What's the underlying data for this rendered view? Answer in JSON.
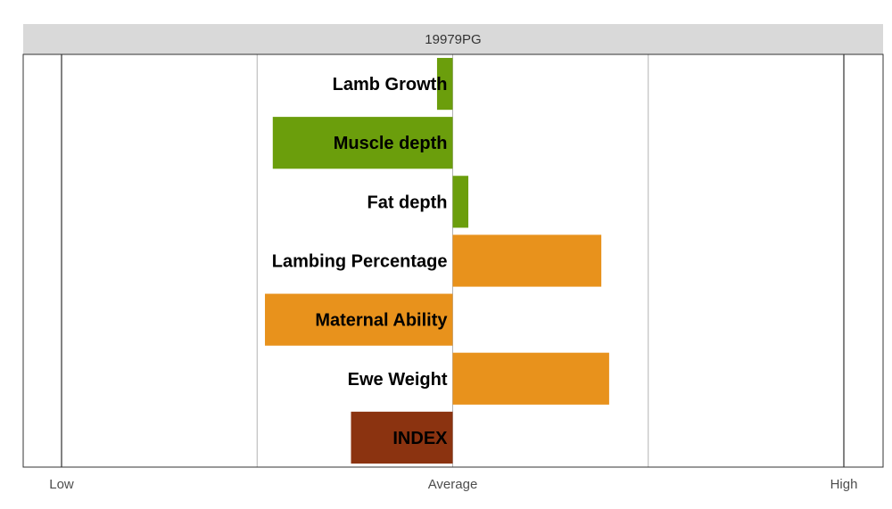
{
  "chart_data": {
    "type": "bar",
    "orientation": "horizontal",
    "title": "19979PG",
    "categories": [
      "Lamb Growth",
      "Muscle depth",
      "Fat depth",
      "Lambing Percentage",
      "Maternal Ability",
      "Ewe Weight",
      "INDEX"
    ],
    "values": [
      -0.08,
      -0.92,
      0.08,
      0.76,
      -0.96,
      0.8,
      -0.52
    ],
    "bar_colors": [
      "#6b9e0c",
      "#6b9e0c",
      "#6b9e0c",
      "#e8921c",
      "#e8921c",
      "#e8921c",
      "#8b3310"
    ],
    "xlim": [
      -2,
      2
    ],
    "xticks": [
      -2,
      -1,
      0,
      1,
      2
    ],
    "xtick_labels": [
      "Low",
      "",
      "Average",
      "",
      "High"
    ],
    "xlabel": "",
    "ylabel": "",
    "grid": true,
    "legend": "none"
  },
  "colors": {
    "strip_background": "#d9d9d9",
    "growth": "#6b9e0c",
    "maternal": "#e8921c",
    "index": "#8b3310"
  }
}
